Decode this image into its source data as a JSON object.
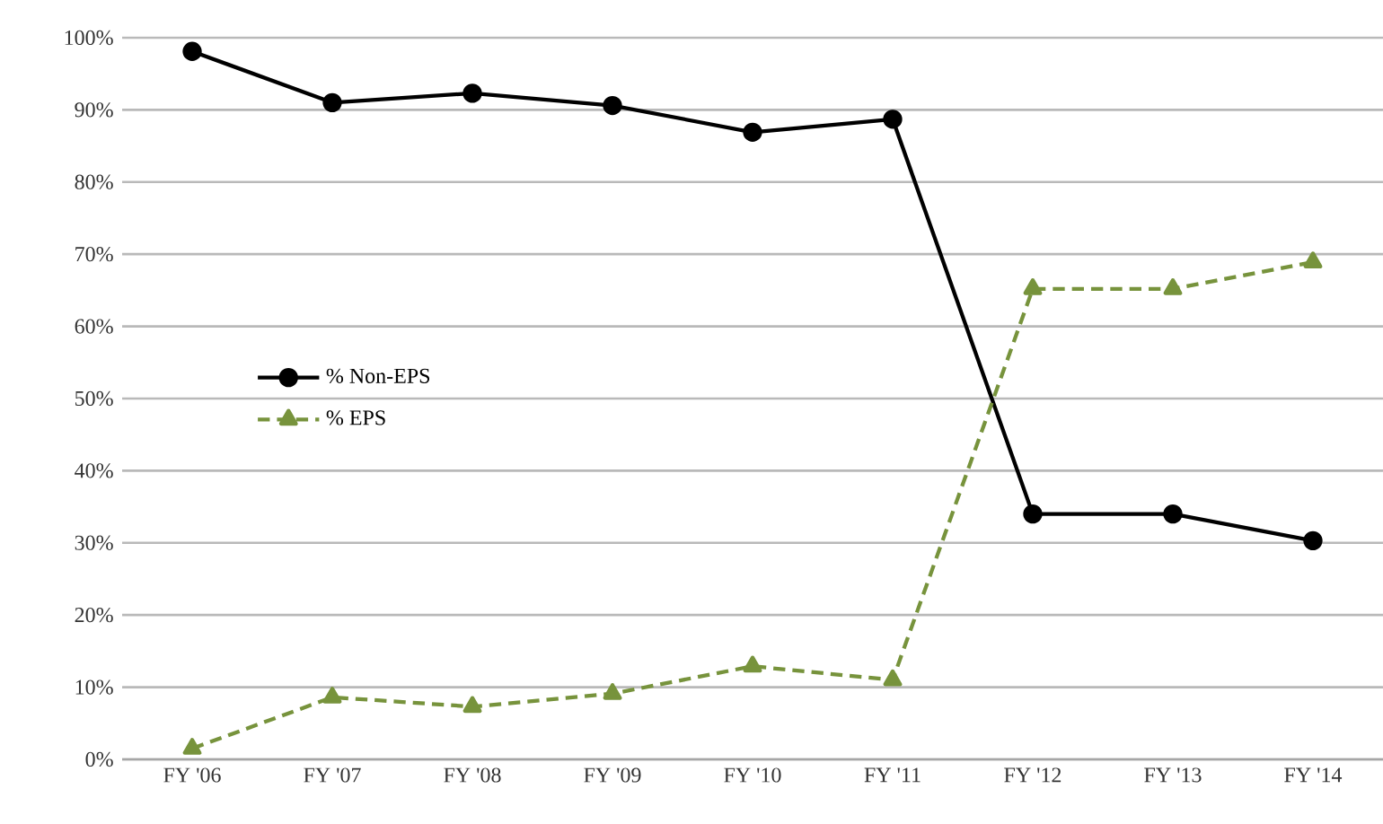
{
  "chart_data": {
    "type": "line",
    "categories": [
      "FY '06",
      "FY '07",
      "FY '08",
      "FY '09",
      "FY '10",
      "FY '11",
      "FY '12",
      "FY '13",
      "FY '14"
    ],
    "series": [
      {
        "name": "% Non-EPS",
        "color": "#000000",
        "marker": "circle",
        "line_style": "solid",
        "values": [
          98.1,
          91.0,
          92.3,
          90.6,
          86.9,
          88.7,
          34.0,
          34.0,
          30.3
        ]
      },
      {
        "name": "% EPS",
        "color": "#77933c",
        "marker": "triangle",
        "line_style": "dashed",
        "values": [
          1.5,
          8.6,
          7.3,
          9.1,
          12.9,
          11.0,
          65.2,
          65.2,
          68.9
        ]
      }
    ],
    "ylim": [
      0,
      100
    ],
    "yticks": [
      {
        "value": 0,
        "label": "0%"
      },
      {
        "value": 10,
        "label": "10%"
      },
      {
        "value": 20,
        "label": "20%"
      },
      {
        "value": 30,
        "label": "30%"
      },
      {
        "value": 40,
        "label": "40%"
      },
      {
        "value": 50,
        "label": "50%"
      },
      {
        "value": 60,
        "label": "60%"
      },
      {
        "value": 70,
        "label": "70%"
      },
      {
        "value": 80,
        "label": "80%"
      },
      {
        "value": 90,
        "label": "90%"
      },
      {
        "value": 100,
        "label": "100%"
      }
    ],
    "grid": "y",
    "legend": "left"
  }
}
